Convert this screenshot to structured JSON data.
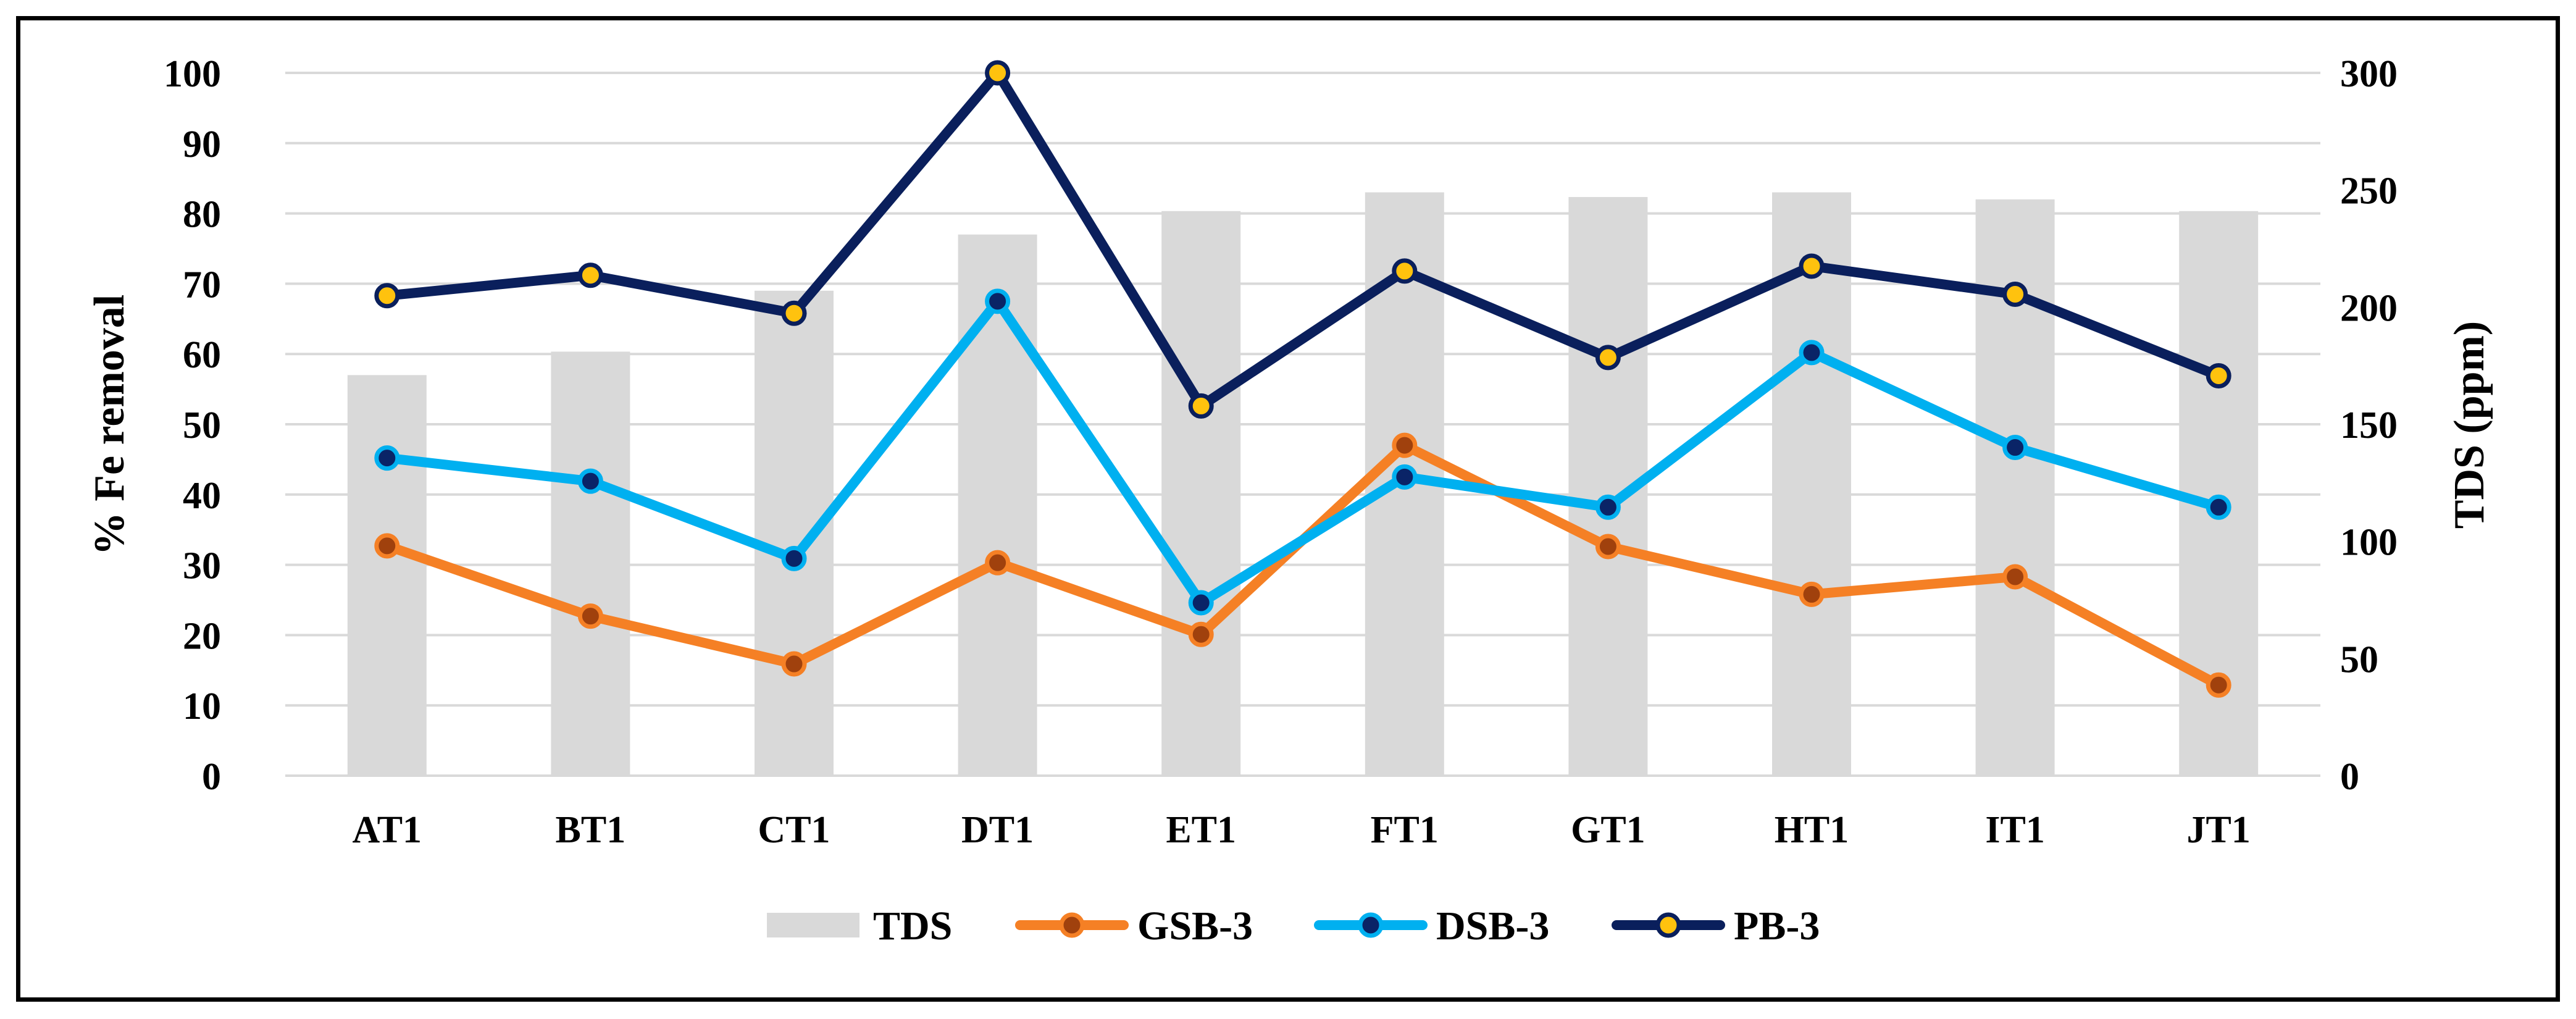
{
  "chart_data": {
    "type": "bar+line",
    "title": "",
    "categories": [
      "AT1",
      "BT1",
      "CT1",
      "DT1",
      "ET1",
      "FT1",
      "GT1",
      "HT1",
      "IT1",
      "JT1"
    ],
    "ylabel": "% Fe removal",
    "y2label": "TDS (ppm)",
    "ylim": [
      0,
      100
    ],
    "y2lim": [
      0,
      300
    ],
    "yticks": [
      0,
      10,
      20,
      30,
      40,
      50,
      60,
      70,
      80,
      90,
      100
    ],
    "y2ticks": [
      0,
      50,
      100,
      150,
      200,
      250,
      300
    ],
    "grid": true,
    "legend_position": "bottom",
    "series": [
      {
        "name": "TDS",
        "kind": "bar",
        "axis": "right",
        "color": "#d9d9d9",
        "values": [
          171,
          181,
          207,
          231,
          241,
          249,
          247,
          249,
          246,
          241
        ]
      },
      {
        "name": "GSB-3",
        "kind": "line",
        "axis": "left",
        "color": "#f58025",
        "marker_fill": "#a0410d",
        "values": [
          32.7,
          22.7,
          15.9,
          30.3,
          20.1,
          47.0,
          32.6,
          25.8,
          28.3,
          12.9
        ]
      },
      {
        "name": "DSB-3",
        "kind": "line",
        "axis": "left",
        "color": "#00b0f0",
        "marker_fill": "#0a2467",
        "values": [
          45.2,
          41.9,
          30.9,
          67.5,
          24.6,
          42.5,
          38.2,
          60.2,
          46.7,
          38.2
        ]
      },
      {
        "name": "PB-3",
        "kind": "line",
        "axis": "left",
        "color": "#0a1f5c",
        "marker_fill": "#ffc20e",
        "values": [
          68.3,
          71.2,
          65.8,
          100.0,
          52.6,
          71.8,
          59.5,
          72.5,
          68.5,
          56.9
        ]
      }
    ]
  }
}
